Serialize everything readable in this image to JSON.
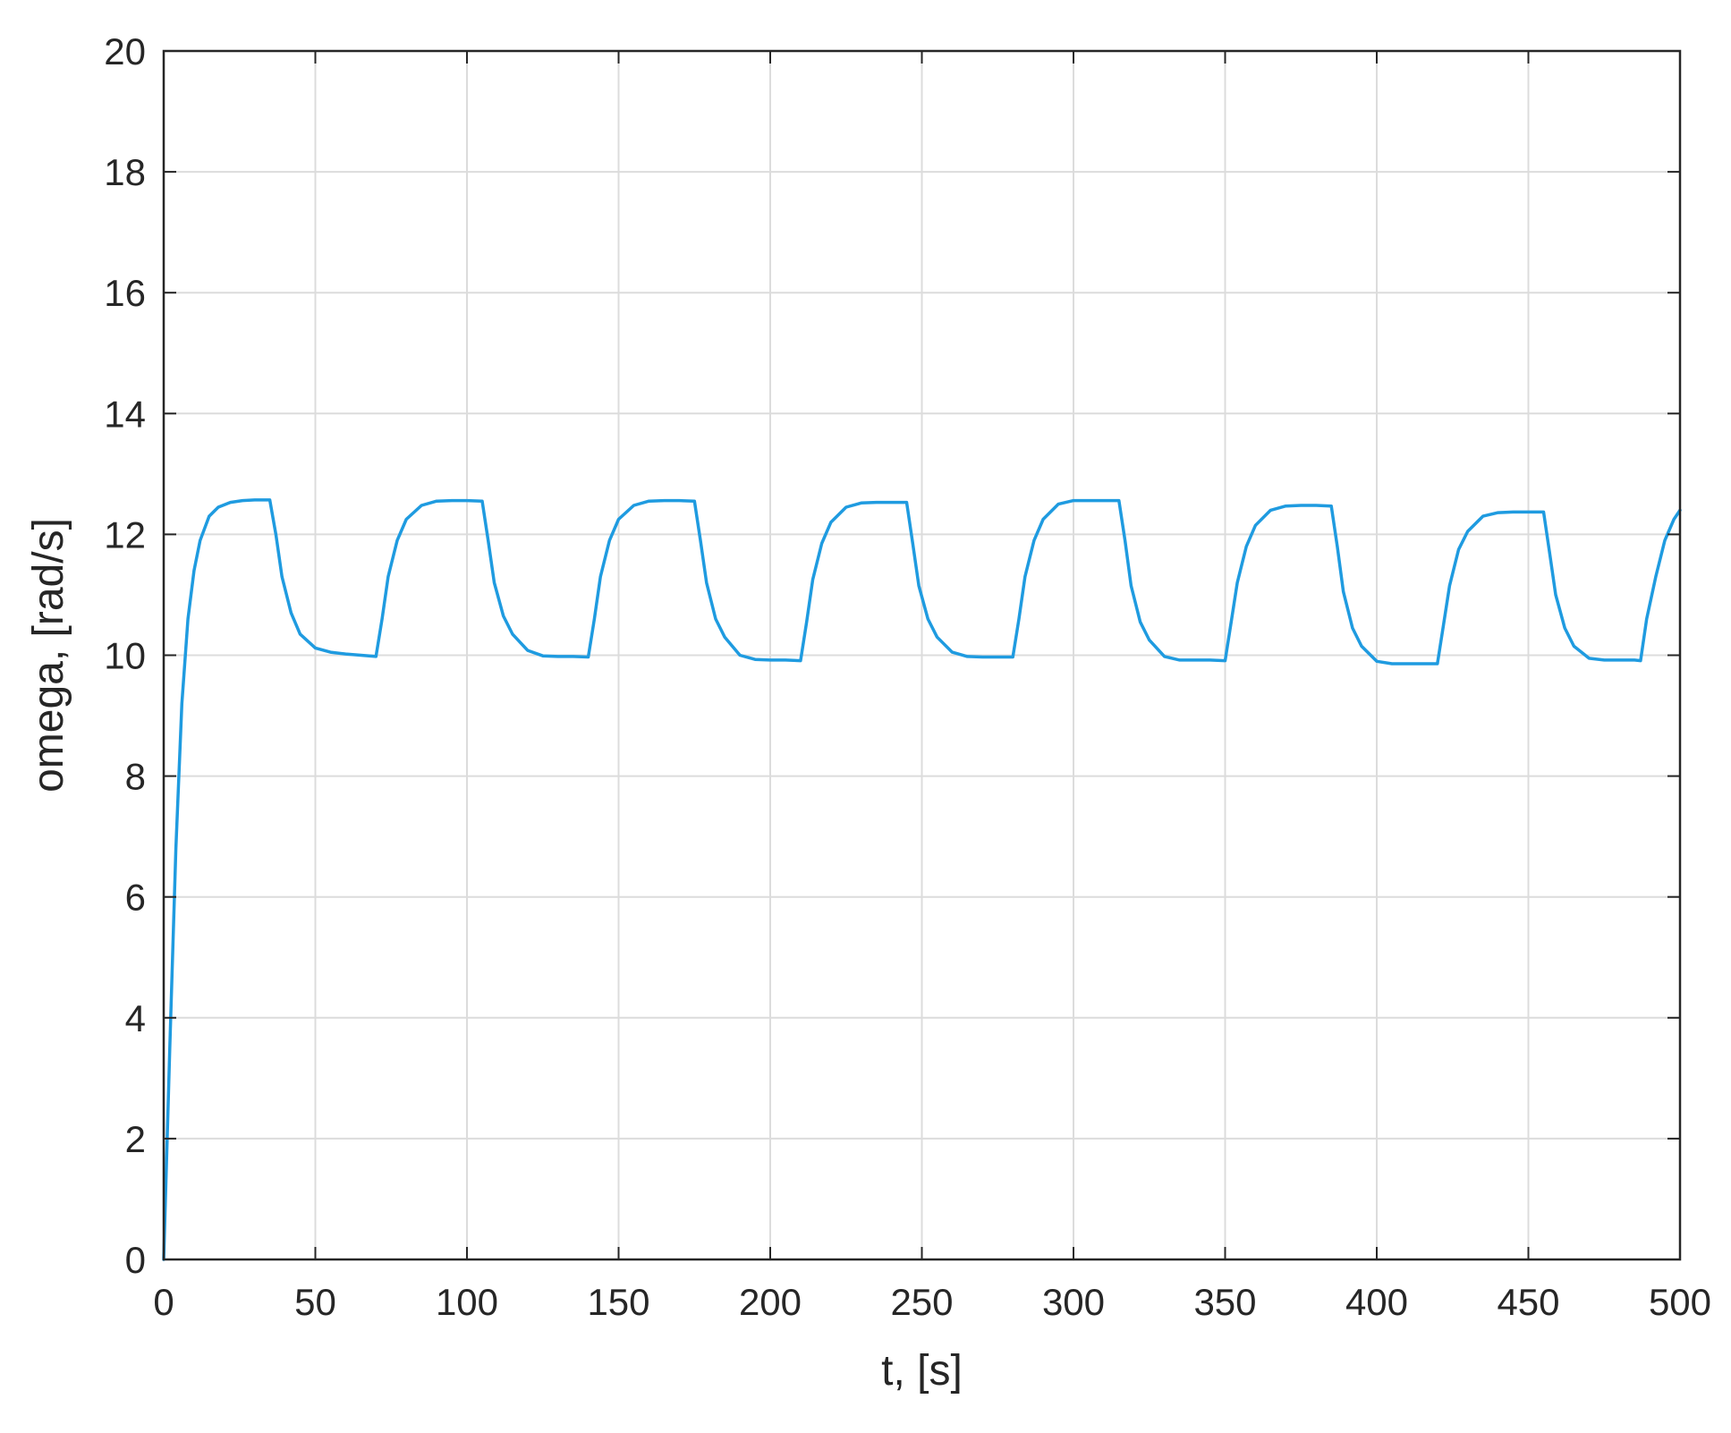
{
  "colors": {
    "line": "#1f9be0",
    "axis": "#262626",
    "grid": "#dcdcdc",
    "background": "#ffffff"
  },
  "chart_data": {
    "type": "line",
    "title": "",
    "xlabel": "t, [s]",
    "ylabel": "omega, [rad/s]",
    "xlim": [
      0,
      500
    ],
    "ylim": [
      0,
      20
    ],
    "xticks": [
      0,
      50,
      100,
      150,
      200,
      250,
      300,
      350,
      400,
      450,
      500
    ],
    "yticks": [
      0,
      2,
      4,
      6,
      8,
      10,
      12,
      14,
      16,
      18,
      20
    ],
    "grid": true,
    "legend": "none",
    "series": [
      {
        "x": [
          0,
          2,
          4,
          6,
          8,
          10,
          12,
          15,
          18,
          22,
          26,
          30,
          35,
          37,
          39,
          42,
          45,
          50,
          55,
          60,
          65,
          70,
          72,
          74,
          77,
          80,
          85,
          90,
          95,
          100,
          105,
          107,
          109,
          112,
          115,
          120,
          125,
          130,
          135,
          140,
          142,
          144,
          147,
          150,
          155,
          160,
          165,
          170,
          175,
          177,
          179,
          182,
          185,
          190,
          195,
          200,
          205,
          210,
          212,
          214,
          217,
          220,
          225,
          230,
          235,
          240,
          245,
          247,
          249,
          252,
          255,
          260,
          265,
          270,
          275,
          280,
          282,
          284,
          287,
          290,
          295,
          300,
          305,
          310,
          315,
          317,
          319,
          322,
          325,
          330,
          335,
          340,
          345,
          350,
          352,
          354,
          357,
          360,
          365,
          370,
          375,
          380,
          385,
          387,
          389,
          392,
          395,
          400,
          405,
          410,
          415,
          420,
          422,
          424,
          427,
          430,
          435,
          440,
          445,
          450,
          455,
          457,
          459,
          462,
          465,
          470,
          475,
          480,
          485,
          487,
          489,
          492,
          495,
          498,
          500
        ],
        "y": [
          0,
          3.5,
          6.8,
          9.2,
          10.6,
          11.4,
          11.9,
          12.3,
          12.45,
          12.53,
          12.56,
          12.57,
          12.57,
          12.0,
          11.3,
          10.7,
          10.35,
          10.12,
          10.05,
          10.02,
          10.0,
          9.98,
          10.6,
          11.3,
          11.9,
          12.25,
          12.48,
          12.55,
          12.56,
          12.56,
          12.55,
          11.9,
          11.2,
          10.65,
          10.35,
          10.08,
          9.99,
          9.98,
          9.98,
          9.97,
          10.6,
          11.3,
          11.9,
          12.25,
          12.48,
          12.55,
          12.56,
          12.56,
          12.55,
          11.9,
          11.2,
          10.6,
          10.3,
          10.0,
          9.93,
          9.92,
          9.92,
          9.91,
          10.55,
          11.25,
          11.85,
          12.2,
          12.45,
          12.52,
          12.53,
          12.53,
          12.53,
          11.85,
          11.15,
          10.6,
          10.3,
          10.05,
          9.98,
          9.97,
          9.97,
          9.97,
          10.6,
          11.3,
          11.9,
          12.25,
          12.5,
          12.56,
          12.56,
          12.56,
          12.56,
          11.9,
          11.15,
          10.55,
          10.25,
          9.98,
          9.92,
          9.92,
          9.92,
          9.91,
          10.55,
          11.2,
          11.8,
          12.15,
          12.4,
          12.47,
          12.48,
          12.48,
          12.47,
          11.8,
          11.05,
          10.45,
          10.15,
          9.9,
          9.86,
          9.86,
          9.86,
          9.86,
          10.5,
          11.15,
          11.75,
          12.05,
          12.3,
          12.36,
          12.37,
          12.37,
          12.37,
          11.7,
          11.0,
          10.45,
          10.15,
          9.95,
          9.92,
          9.92,
          9.92,
          9.91,
          10.6,
          11.3,
          11.9,
          12.25,
          12.4
        ]
      }
    ]
  }
}
